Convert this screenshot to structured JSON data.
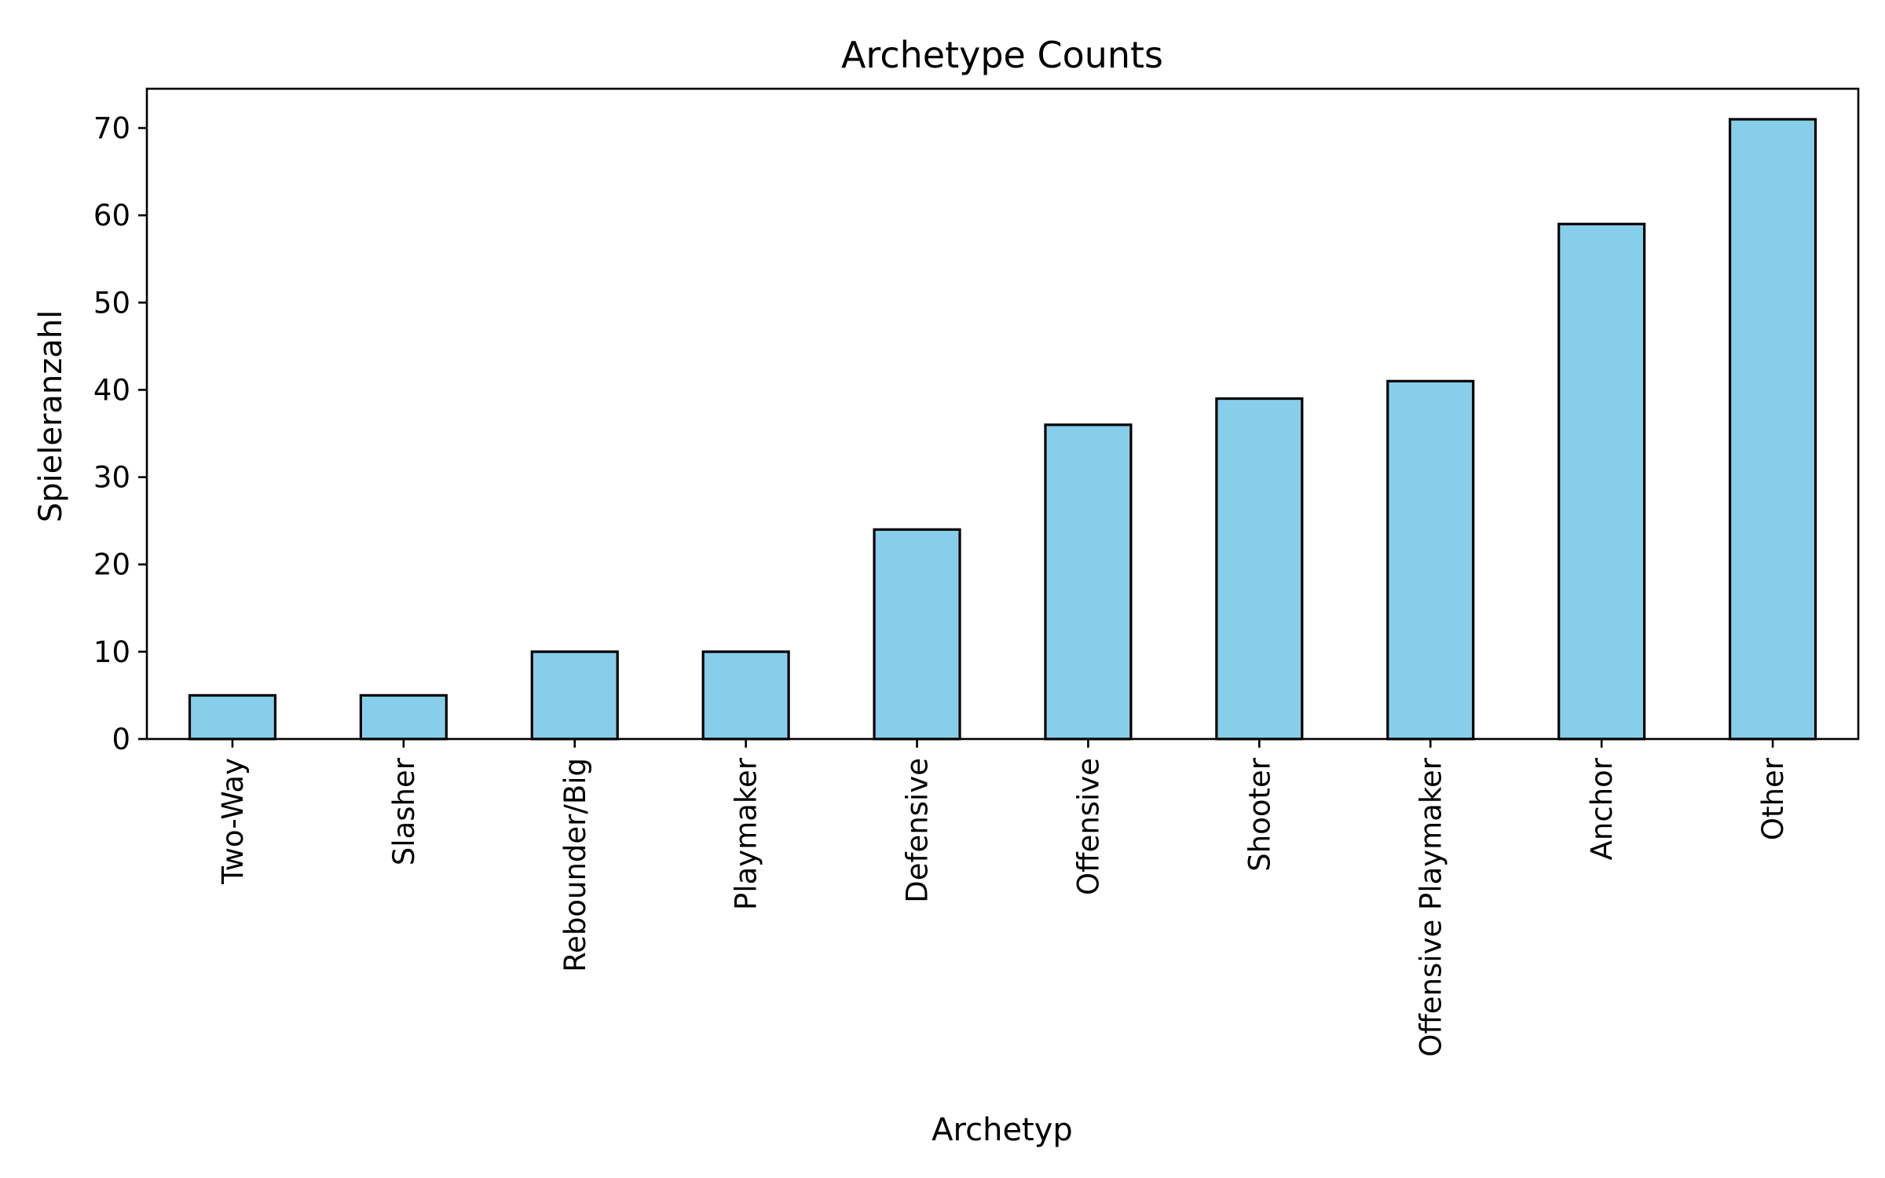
{
  "chart_data": {
    "type": "bar",
    "title": "Archetype Counts",
    "xlabel": "Archetyp",
    "ylabel": "Spieleranzahl",
    "categories": [
      "Two-Way",
      "Slasher",
      "Rebounder/Big",
      "Playmaker",
      "Defensive",
      "Offensive",
      "Shooter",
      "Offensive Playmaker",
      "Anchor",
      "Other"
    ],
    "values": [
      5,
      5,
      10,
      10,
      24,
      36,
      39,
      41,
      59,
      71
    ],
    "ylim": [
      0,
      74.5
    ],
    "yticks": [
      0,
      10,
      20,
      30,
      40,
      50,
      60,
      70
    ],
    "bar_color": "#87ceeb",
    "edge_color": "#000000",
    "grid": false,
    "legend": "none"
  }
}
